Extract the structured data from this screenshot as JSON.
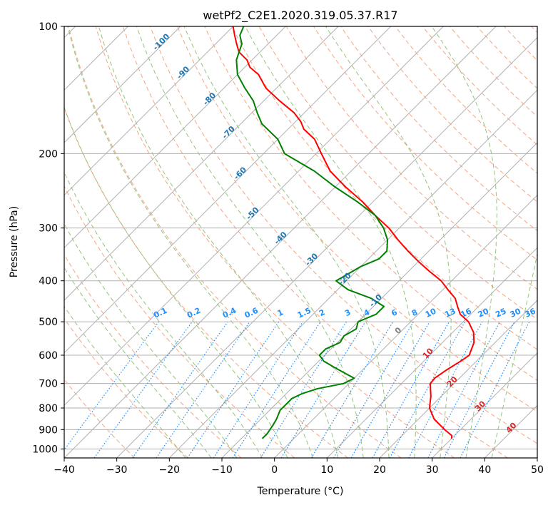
{
  "chart_data": {
    "type": "line",
    "title": "wetPf2_C2E1.2020.319.05.37.R17",
    "xlabel": "Temperature (°C)",
    "ylabel": "Pressure (hPa)",
    "xlim": [
      -40,
      50
    ],
    "ylim": [
      1050,
      100
    ],
    "y_scale": "log",
    "x_ticks": [
      "−40",
      "−30",
      "−20",
      "−10",
      "0",
      "10",
      "20",
      "30",
      "40",
      "50"
    ],
    "y_ticks": [
      "100",
      "200",
      "300",
      "400",
      "500",
      "600",
      "700",
      "800",
      "900",
      "1000"
    ],
    "skew": 45,
    "grid": true,
    "colors": {
      "temperature": "#ff0000",
      "dewpoint": "#008000",
      "isotherm_labels": "#1f77b4",
      "mixing_ratio": "#1e90ff",
      "moist_label": "#d62728",
      "dry_adiabat": "#f4a582",
      "moist_adiabat": "#93c47d",
      "grid": "#b0b0b0"
    },
    "series": [
      {
        "key": "temperature",
        "p": [
          945,
          930,
          900,
          850,
          800,
          750,
          720,
          700,
          680,
          650,
          620,
          600,
          560,
          530,
          500,
          480,
          460,
          440,
          420,
          400,
          380,
          360,
          340,
          320,
          300,
          280,
          260,
          240,
          220,
          200,
          185,
          175,
          168,
          160,
          150,
          140,
          130,
          125,
          120,
          115,
          110,
          105,
          100
        ],
        "t": [
          30,
          29.5,
          27,
          23,
          20,
          18,
          16.5,
          15.5,
          15.3,
          16,
          17,
          17.5,
          16,
          14,
          11,
          8,
          6,
          4,
          1,
          -2,
          -6,
          -10,
          -14,
          -18,
          -22,
          -27,
          -32,
          -38,
          -44,
          -49,
          -53,
          -57,
          -59,
          -62,
          -67,
          -72,
          -76,
          -79,
          -81,
          -84,
          -86,
          -88,
          -90
        ]
      },
      {
        "key": "dewpoint",
        "p": [
          945,
          920,
          880,
          850,
          810,
          780,
          760,
          740,
          720,
          700,
          680,
          660,
          640,
          620,
          600,
          580,
          560,
          540,
          520,
          500,
          480,
          460,
          440,
          420,
          400,
          385,
          370,
          355,
          340,
          320,
          300,
          280,
          260,
          240,
          220,
          200,
          185,
          170,
          160,
          150,
          140,
          130,
          120,
          110,
          105,
          100
        ],
        "t": [
          -6,
          -6,
          -6.5,
          -7,
          -8,
          -8,
          -8,
          -7,
          -5,
          -1,
          0,
          -3,
          -6,
          -9,
          -11,
          -11,
          -9.5,
          -10,
          -9,
          -10,
          -8,
          -8,
          -12,
          -18,
          -22,
          -21,
          -20,
          -18,
          -18,
          -20,
          -23,
          -27,
          -33,
          -40,
          -47,
          -56,
          -60,
          -66,
          -69,
          -72,
          -76,
          -80,
          -83,
          -85,
          -87,
          -88
        ]
      }
    ],
    "isotherm_labels": [
      "-100",
      "-90",
      "-80",
      "-70",
      "-60",
      "-50",
      "-40",
      "-30",
      "-20",
      "-10",
      "0",
      "10",
      "20",
      "30",
      "40"
    ],
    "mixing_ratio_labels": [
      "0.1",
      "0.2",
      "0.4",
      "0.6",
      "1",
      "1.5",
      "2",
      "3",
      "4",
      "6",
      "8",
      "10",
      "13",
      "16",
      "20",
      "25",
      "30",
      "36"
    ]
  }
}
